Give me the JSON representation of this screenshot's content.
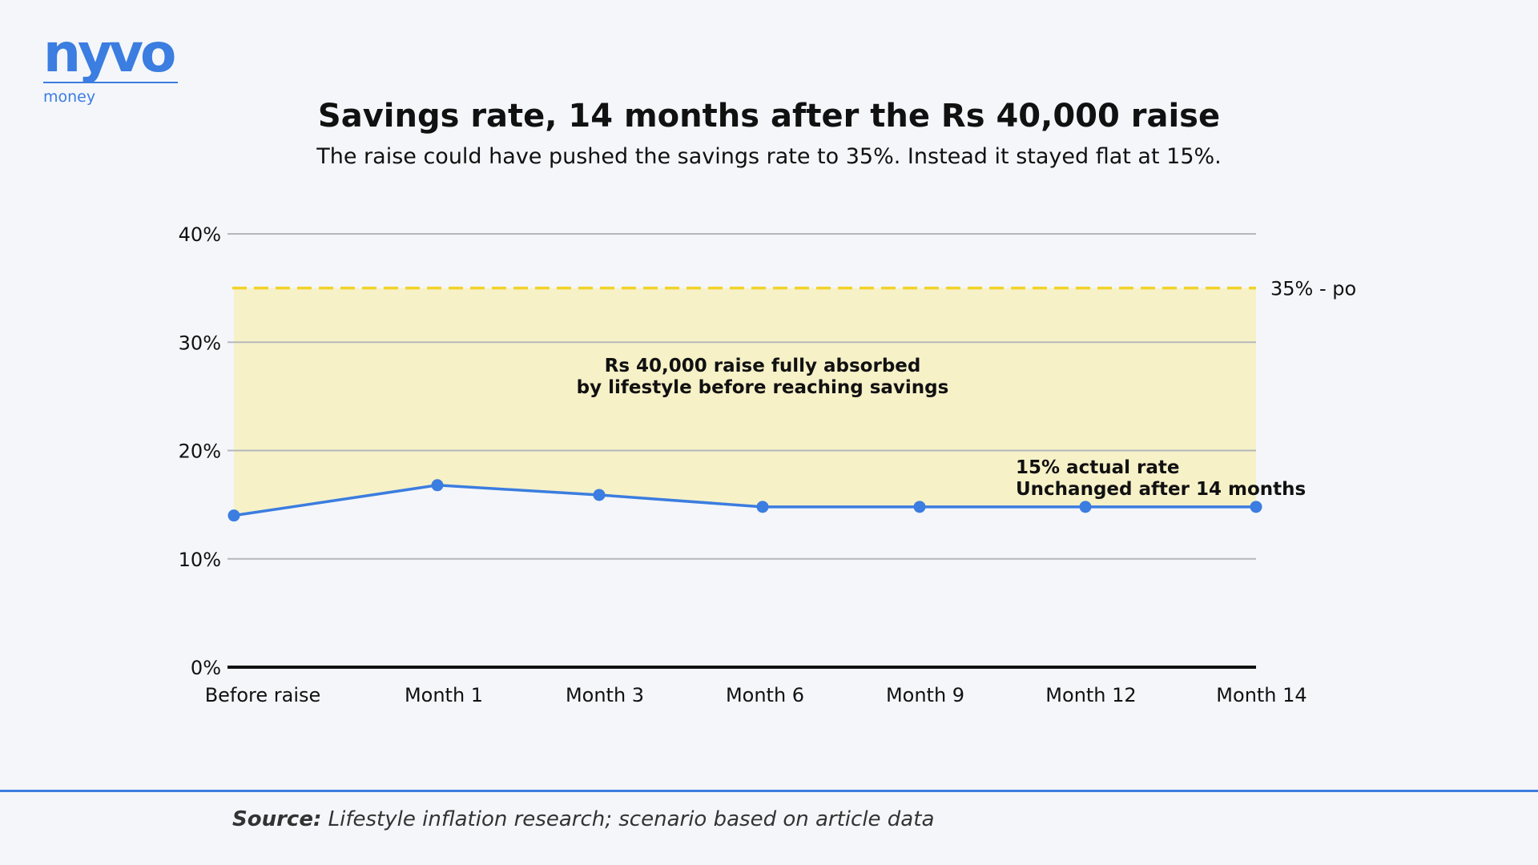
{
  "brand": {
    "name": "nyvo",
    "tagline": "money"
  },
  "header": {
    "title": "Savings rate, 14 months after the Rs 40,000 raise",
    "subtitle": "The raise could have pushed the savings rate to 35%. Instead it stayed flat at 15%."
  },
  "source": {
    "label": "Source:",
    "text": "Lifestyle inflation research; scenario based on article data"
  },
  "colors": {
    "line": "#3b7de0",
    "target": "#f2d22a",
    "band": "#f7f1c8",
    "grid": "#b5b7bb",
    "axis": "#111111"
  },
  "chart_data": {
    "type": "line",
    "categories": [
      "Before raise",
      "Month 1",
      "Month 3",
      "Month 6",
      "Month 9",
      "Month 12",
      "Month 14"
    ],
    "x": [
      0,
      1,
      3,
      6,
      9,
      12,
      14
    ],
    "series": [
      {
        "values": [
          14,
          16.8,
          15.9,
          14.8,
          14.8,
          14.8,
          14.8
        ]
      }
    ],
    "ylim": [
      0,
      40
    ],
    "yticks": [
      0,
      10,
      20,
      30,
      40
    ],
    "ytick_labels": [
      "0%",
      "10%",
      "20%",
      "30%",
      "40%"
    ],
    "grid": true,
    "reference_line": {
      "value": 35,
      "label": "35% - po",
      "style": "dashed"
    },
    "annotations": [
      {
        "lines": [
          "Rs 40,000 raise fully absorbed",
          "by lifestyle before reaching savings"
        ]
      },
      {
        "lines": [
          "15% actual rate",
          "Unchanged after 14 months"
        ]
      }
    ]
  }
}
